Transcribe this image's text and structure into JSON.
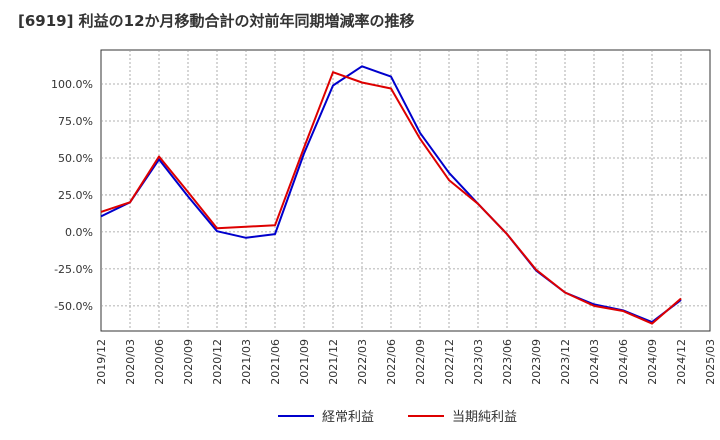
{
  "chart_data": {
    "type": "line",
    "title": "[6919]  利益の12か月移動合計の対前年同期増減率の推移",
    "xlabel": "",
    "ylabel": "",
    "categories": [
      "2019/12",
      "2020/03",
      "2020/06",
      "2020/09",
      "2020/12",
      "2021/03",
      "2021/06",
      "2021/09",
      "2021/12",
      "2022/03",
      "2022/06",
      "2022/09",
      "2022/12",
      "2023/03",
      "2023/06",
      "2023/09",
      "2023/12",
      "2024/03",
      "2024/06",
      "2024/09",
      "2024/12",
      "2025/03"
    ],
    "y_ticks": [
      "100.0%",
      "75.0%",
      "50.0%",
      "25.0%",
      "0.0%",
      "-25.0%",
      "-50.0%"
    ],
    "y_tick_values": [
      100,
      75,
      50,
      25,
      0,
      -25,
      -50
    ],
    "ylim": [
      -67,
      123
    ],
    "grid": true,
    "series": [
      {
        "name": "経常利益",
        "color": "#0000cc",
        "values": [
          10.5,
          20,
          49,
          24,
          0.5,
          -4,
          -1.5,
          53,
          99,
          112,
          105,
          67,
          40,
          19,
          -1.5,
          -26,
          -41,
          -49,
          -53,
          -61,
          -46,
          null
        ]
      },
      {
        "name": "当期純利益",
        "color": "#dd0000",
        "values": [
          13.5,
          20,
          51,
          27,
          2.5,
          3.5,
          4.5,
          57,
          108,
          101,
          97,
          63,
          35,
          19,
          -1.5,
          -25.5,
          -41,
          -50,
          -53.5,
          -62,
          -45,
          null
        ]
      }
    ]
  }
}
